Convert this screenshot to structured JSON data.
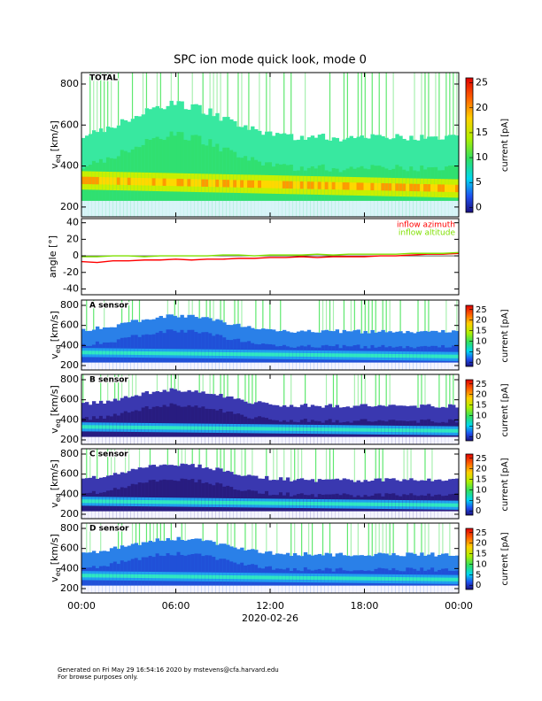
{
  "title": "SPC ion mode quick look, mode 0",
  "x_axis": {
    "xlim": [
      0,
      24
    ],
    "xticks": [
      {
        "value": 0,
        "label": "00:00"
      },
      {
        "value": 6,
        "label": "06:00"
      },
      {
        "value": 12,
        "label": "12:00"
      },
      {
        "value": 18,
        "label": "18:00"
      },
      {
        "value": 24,
        "label": "00:00"
      }
    ],
    "label": "2020-02-26"
  },
  "chart_data": [
    {
      "type": "spectrogram",
      "panel_label": "TOTAL",
      "y_label": {
        "main": "v",
        "sub": "eq",
        "unit": "[km/s]"
      },
      "ylim": [
        152,
        856
      ],
      "yticks": [
        200,
        400,
        600,
        800
      ],
      "colorbar": {
        "label": "current [pA]",
        "clim": [
          -1,
          26
        ],
        "ticks": [
          0,
          5,
          10,
          15,
          20,
          25
        ]
      }
    },
    {
      "type": "line",
      "y_label": "angle [°]",
      "ylim": [
        -47,
        45
      ],
      "yticks": [
        -40,
        -20,
        0,
        20,
        40
      ],
      "x": [
        0,
        1,
        2,
        3,
        4,
        5,
        6,
        7,
        8,
        9,
        10,
        11,
        12,
        13,
        14,
        15,
        16,
        17,
        18,
        19,
        20,
        21,
        22,
        23,
        24
      ],
      "series": [
        {
          "name": "inflow azimuth",
          "color": "#ff0000",
          "values": [
            -7,
            -8,
            -6,
            -6,
            -5,
            -5,
            -4,
            -5,
            -4,
            -4,
            -3,
            -3,
            -2,
            -2,
            -1,
            -2,
            -1,
            -1,
            -1,
            0,
            0,
            1,
            2,
            2,
            3
          ]
        },
        {
          "name": "inflow altitude",
          "color": "#7fe000",
          "values": [
            -1,
            -1,
            0,
            0,
            -1,
            0,
            0,
            0,
            0,
            1,
            1,
            0,
            1,
            1,
            1,
            2,
            1,
            2,
            2,
            2,
            2,
            3,
            3,
            3,
            4
          ]
        }
      ]
    },
    {
      "type": "spectrogram",
      "panel_label": "A sensor",
      "y_label": {
        "main": "v",
        "sub": "eq",
        "unit": "[km/s]"
      },
      "ylim": [
        156,
        853
      ],
      "yticks": [
        200,
        400,
        600,
        800
      ],
      "colorbar": {
        "label": "current [pA]",
        "clim": [
          -2,
          27
        ],
        "ticks": [
          0,
          5,
          10,
          15,
          20,
          25
        ]
      }
    },
    {
      "type": "spectrogram",
      "panel_label": "B sensor",
      "y_label": {
        "main": "v",
        "sub": "eq",
        "unit": "[km/s]"
      },
      "ylim": [
        156,
        853
      ],
      "yticks": [
        200,
        400,
        600,
        800
      ],
      "colorbar": {
        "label": "current [pA]",
        "clim": [
          -2,
          27
        ],
        "ticks": [
          0,
          5,
          10,
          15,
          20,
          25
        ]
      }
    },
    {
      "type": "spectrogram",
      "panel_label": "C sensor",
      "y_label": {
        "main": "v",
        "sub": "eq",
        "unit": "[km/s]"
      },
      "ylim": [
        156,
        853
      ],
      "yticks": [
        200,
        400,
        600,
        800
      ],
      "colorbar": {
        "label": "current [pA]",
        "clim": [
          -2,
          27
        ],
        "ticks": [
          0,
          5,
          10,
          15,
          20,
          25
        ]
      }
    },
    {
      "type": "spectrogram",
      "panel_label": "D sensor",
      "y_label": {
        "main": "v",
        "sub": "eq",
        "unit": "[km/s]"
      },
      "ylim": [
        156,
        853
      ],
      "yticks": [
        200,
        400,
        600,
        800
      ],
      "colorbar": {
        "label": "current [pA]",
        "clim": [
          -2,
          27
        ],
        "ticks": [
          0,
          5,
          10,
          15,
          20,
          25
        ]
      }
    }
  ],
  "footer": [
    "Generated on Fri May 29 16:54:16 2020 by mstevens@cfa.harvard.edu",
    "For browse purposes only."
  ]
}
